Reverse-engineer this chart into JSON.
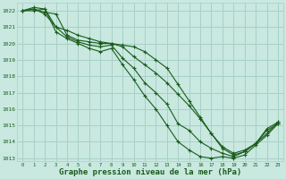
{
  "bg_color": "#c8e8e0",
  "grid_color": "#a8d0c8",
  "line_color": "#1a5c1a",
  "marker_color": "#1a5c1a",
  "xlabel": "Graphe pression niveau de la mer (hPa)",
  "xlabel_fontsize": 6.5,
  "xlim": [
    -0.5,
    23.5
  ],
  "ylim": [
    1012.8,
    1022.5
  ],
  "yticks": [
    1013,
    1014,
    1015,
    1016,
    1017,
    1018,
    1019,
    1020,
    1021,
    1022
  ],
  "xticks": [
    0,
    1,
    2,
    3,
    4,
    5,
    6,
    7,
    8,
    9,
    10,
    11,
    12,
    13,
    14,
    15,
    16,
    17,
    18,
    19,
    20,
    21,
    22,
    23
  ],
  "series": [
    [
      1022.0,
      1022.2,
      1022.1,
      1021.0,
      1020.8,
      1020.5,
      1020.3,
      1020.1,
      1020.0,
      1019.8,
      1019.2,
      1018.7,
      1018.2,
      1017.6,
      1016.9,
      1016.2,
      1015.4,
      1014.5,
      1013.7,
      1013.3,
      1013.5,
      1013.9,
      1014.8,
      1015.2
    ],
    [
      1022.0,
      1022.1,
      1021.9,
      1021.8,
      1020.5,
      1020.2,
      1020.1,
      1020.0,
      1020.0,
      1019.9,
      1019.8,
      1019.5,
      1019.0,
      1018.5,
      1017.5,
      1016.5,
      1015.5,
      1014.5,
      1013.6,
      1013.2,
      1013.4,
      1013.9,
      1014.7,
      1015.1
    ],
    [
      1022.0,
      1022.1,
      1021.8,
      1021.0,
      1020.4,
      1020.1,
      1019.9,
      1019.8,
      1019.9,
      1019.1,
      1018.5,
      1017.6,
      1017.0,
      1016.3,
      1015.1,
      1014.7,
      1014.0,
      1013.6,
      1013.3,
      1013.1,
      1013.4,
      1013.9,
      1014.5,
      1015.2
    ],
    [
      1022.0,
      1022.0,
      1022.1,
      1020.7,
      1020.3,
      1020.0,
      1019.7,
      1019.5,
      1019.7,
      1018.7,
      1017.8,
      1016.8,
      1016.0,
      1015.0,
      1014.0,
      1013.5,
      1013.1,
      1013.0,
      1013.1,
      1013.0,
      1013.2,
      1013.8,
      1014.4,
      1015.1
    ]
  ]
}
